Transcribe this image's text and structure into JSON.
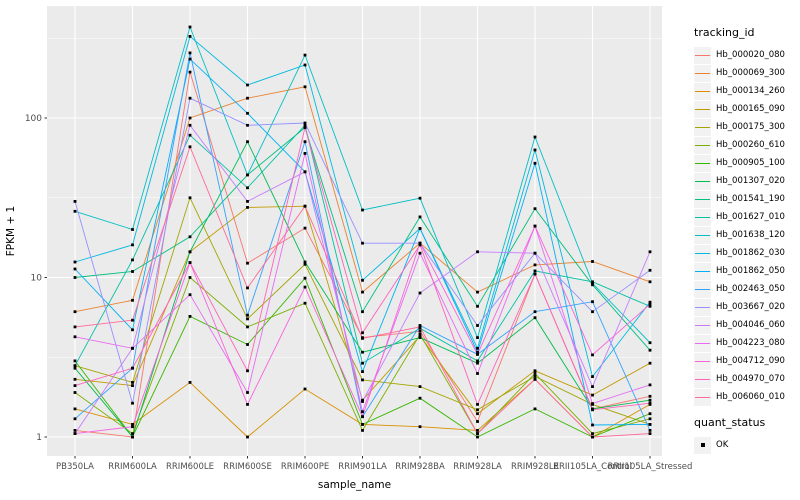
{
  "figure": {
    "y_axis_title": "FPKM + 1",
    "x_axis_title": "sample_name",
    "legend": {
      "tracking_title": "tracking_id",
      "quant_title": "quant_status",
      "quant_ok_label": "OK"
    }
  },
  "chart_data": {
    "type": "line",
    "title": "",
    "xlabel": "sample_name",
    "ylabel": "FPKM + 1",
    "y_scale": "log10",
    "ylim": [
      0.76,
      505
    ],
    "y_major_ticks": [
      1,
      10,
      100
    ],
    "y_tick_labels": [
      "1",
      "10",
      "100"
    ],
    "y_minor_ticks": [
      3.162,
      31.62,
      316.2
    ],
    "grid": true,
    "panel_bg": "#EBEBEB",
    "grid_color": "#FFFFFF",
    "point_shape": "filled-square",
    "point_color": "#000000",
    "legend_position": "right",
    "quant_status_value": "OK",
    "categories": [
      "PB350LA",
      "RRIM600LA",
      "RRIM600LE",
      "RRIM600SE",
      "RRIM600PE",
      "RRIM901LA",
      "RRIM928BA",
      "RRIM928LA",
      "RRIM928LE",
      "RRII105LA_Control",
      "RRII105LA_Stressed"
    ],
    "series": [
      {
        "name": "Hb_000020_080",
        "color": "#F8766D",
        "values": [
          1.1,
          1.0,
          194,
          12.3,
          20.4,
          4.2,
          4.6,
          1.25,
          10.5,
          1.5,
          1.8
        ]
      },
      {
        "name": "Hb_000069_300",
        "color": "#EA8331",
        "values": [
          6.1,
          7.2,
          100,
          133,
          157,
          8.1,
          16.4,
          8.1,
          12.0,
          12.6,
          9.4
        ]
      },
      {
        "name": "Hb_000134_260",
        "color": "#D89000",
        "values": [
          1.5,
          1.2,
          2.2,
          1.0,
          2.0,
          1.2,
          1.16,
          1.1,
          2.3,
          1.0,
          1.6
        ]
      },
      {
        "name": "Hb_000165_090",
        "color": "#C09B00",
        "values": [
          2.3,
          2.1,
          14.5,
          27.5,
          28.0,
          1.7,
          4.3,
          1.4,
          2.6,
          1.83,
          2.9
        ]
      },
      {
        "name": "Hb_000175_300",
        "color": "#A3A500",
        "values": [
          2.8,
          2.2,
          31.6,
          5.5,
          12.1,
          2.28,
          2.07,
          1.48,
          2.4,
          1.6,
          1.2
        ]
      },
      {
        "name": "Hb_000260_610",
        "color": "#7CAE00",
        "values": [
          1.9,
          1.05,
          10.0,
          4.9,
          6.9,
          1.1,
          4.4,
          1.05,
          2.5,
          1.05,
          1.3
        ]
      },
      {
        "name": "Hb_000905_100",
        "color": "#39B600",
        "values": [
          3.0,
          1.0,
          5.7,
          3.8,
          9.9,
          1.2,
          1.75,
          1.0,
          1.5,
          1.0,
          1.4
        ]
      },
      {
        "name": "Hb_001307_020",
        "color": "#00BB4E",
        "values": [
          2.7,
          1.0,
          14.5,
          71.0,
          12.5,
          3.4,
          4.2,
          2.9,
          5.6,
          1.5,
          1.7
        ]
      },
      {
        "name": "Hb_001541_190",
        "color": "#00BF7D",
        "values": [
          10.0,
          10.9,
          18.0,
          44.0,
          87.0,
          6.1,
          24.0,
          6.6,
          27.0,
          9.0,
          3.5
        ]
      },
      {
        "name": "Hb_001627_010",
        "color": "#00C1A3",
        "values": [
          2.8,
          12.9,
          78.0,
          36.5,
          90.0,
          2.9,
          4.8,
          3.0,
          11.0,
          9.4,
          6.6
        ]
      },
      {
        "name": "Hb_001638_120",
        "color": "#00BFC4",
        "values": [
          26.0,
          20.0,
          372.0,
          44.0,
          248.0,
          26.5,
          31.4,
          4.2,
          76.0,
          9.2,
          3.9
        ]
      },
      {
        "name": "Hb_001862_030",
        "color": "#00BAE0",
        "values": [
          12.5,
          16.0,
          325.0,
          161.0,
          215.0,
          9.6,
          20.3,
          3.6,
          63.0,
          2.39,
          7.0
        ]
      },
      {
        "name": "Hb_001862_050",
        "color": "#00B0F6",
        "values": [
          11.3,
          4.7,
          234.0,
          107.0,
          46.0,
          2.57,
          20.3,
          3.4,
          52.0,
          1.19,
          1.2
        ]
      },
      {
        "name": "Hb_002463_050",
        "color": "#35A2FF",
        "values": [
          1.3,
          2.7,
          256.0,
          5.8,
          71.0,
          1.34,
          5.0,
          3.3,
          6.1,
          7.05,
          1.1
        ]
      },
      {
        "name": "Hb_003667_020",
        "color": "#9590FF",
        "values": [
          30.0,
          1.63,
          133.0,
          90.0,
          93.0,
          16.4,
          16.4,
          5.0,
          14.2,
          6.1,
          11.1
        ]
      },
      {
        "name": "Hb_004046_060",
        "color": "#C77CFF",
        "values": [
          1.05,
          3.6,
          90.0,
          30.0,
          46.0,
          1.67,
          8.0,
          14.5,
          14.2,
          2.07,
          14.5
        ]
      },
      {
        "name": "Hb_004223_080",
        "color": "#E76BF3",
        "values": [
          4.25,
          3.6,
          7.8,
          1.9,
          60.0,
          1.44,
          14.2,
          2.5,
          21.0,
          1.62,
          2.12
        ]
      },
      {
        "name": "Hb_004712_090",
        "color": "#FA62DB",
        "values": [
          1.05,
          1.16,
          12.4,
          1.6,
          8.7,
          1.34,
          16.4,
          3.3,
          21.0,
          3.27,
          6.8
        ]
      },
      {
        "name": "Hb_004970_070",
        "color": "#FF62BC",
        "values": [
          2.1,
          2.7,
          12.4,
          2.6,
          87.0,
          4.5,
          16.0,
          1.6,
          10.5,
          1.48,
          1.63
        ]
      },
      {
        "name": "Hb_006060_010",
        "color": "#FF6A98",
        "values": [
          4.9,
          5.4,
          66.0,
          8.6,
          28.0,
          4.15,
          4.9,
          1.05,
          2.3,
          1.0,
          1.05
        ]
      }
    ]
  }
}
